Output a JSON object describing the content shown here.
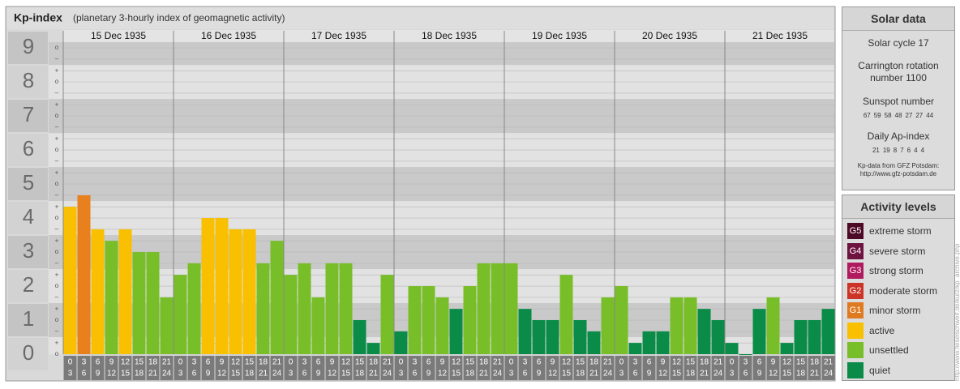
{
  "chart_data": {
    "type": "bar",
    "title": "Kp-index",
    "subtitle": "(planetary 3-hourly index of geomagnetic activity)",
    "ylim": [
      0,
      9.17
    ],
    "yticks": [
      0,
      1,
      2,
      3,
      4,
      5,
      6,
      7,
      8,
      9
    ],
    "minor_ticks": [
      {
        "value": 0,
        "label": "o"
      },
      {
        "value": 0.33,
        "label": "+"
      },
      {
        "value": 0.67,
        "label": "–"
      },
      {
        "value": 1,
        "label": "o"
      },
      {
        "value": 1.33,
        "label": "+"
      },
      {
        "value": 1.67,
        "label": "–"
      },
      {
        "value": 2,
        "label": "o"
      },
      {
        "value": 2.33,
        "label": "+"
      },
      {
        "value": 2.67,
        "label": "–"
      },
      {
        "value": 3,
        "label": "o"
      },
      {
        "value": 3.33,
        "label": "+"
      },
      {
        "value": 3.67,
        "label": "–"
      },
      {
        "value": 4,
        "label": "o"
      },
      {
        "value": 4.33,
        "label": "+"
      },
      {
        "value": 4.67,
        "label": "–"
      },
      {
        "value": 5,
        "label": "o"
      },
      {
        "value": 5.33,
        "label": "+"
      },
      {
        "value": 5.67,
        "label": "–"
      },
      {
        "value": 6,
        "label": "o"
      },
      {
        "value": 6.33,
        "label": "+"
      },
      {
        "value": 6.67,
        "label": "–"
      },
      {
        "value": 7,
        "label": "o"
      },
      {
        "value": 7.33,
        "label": "+"
      },
      {
        "value": 7.67,
        "label": "–"
      },
      {
        "value": 8,
        "label": "o"
      },
      {
        "value": 8.33,
        "label": "+"
      },
      {
        "value": 8.67,
        "label": "–"
      },
      {
        "value": 9,
        "label": "o"
      }
    ],
    "grid": true,
    "hours": [
      {
        "from": "0",
        "to": "3"
      },
      {
        "from": "3",
        "to": "6"
      },
      {
        "from": "6",
        "to": "9"
      },
      {
        "from": "9",
        "to": "12"
      },
      {
        "from": "12",
        "to": "15"
      },
      {
        "from": "15",
        "to": "18"
      },
      {
        "from": "18",
        "to": "21"
      },
      {
        "from": "21",
        "to": "24"
      }
    ],
    "days": [
      {
        "date": "15 Dec 1935",
        "values": [
          4.33,
          4.67,
          3.67,
          3.33,
          3.67,
          3,
          3,
          1.67
        ],
        "colors": [
          "#f8c000",
          "#e8801e",
          "#f8c000",
          "#78be28",
          "#f8c000",
          "#78be28",
          "#78be28",
          "#78be28"
        ]
      },
      {
        "date": "16 Dec 1935",
        "values": [
          2.33,
          2.67,
          4,
          4,
          3.67,
          3.67,
          2.67,
          3.33
        ],
        "colors": [
          "#78be28",
          "#78be28",
          "#f8c000",
          "#f8c000",
          "#f8c000",
          "#f8c000",
          "#78be28",
          "#78be28"
        ]
      },
      {
        "date": "17 Dec 1935",
        "values": [
          2.33,
          2.67,
          1.67,
          2.67,
          2.67,
          1,
          0.33,
          2.33
        ],
        "colors": [
          "#78be28",
          "#78be28",
          "#78be28",
          "#78be28",
          "#78be28",
          "#0a8c48",
          "#0a8c48",
          "#78be28"
        ]
      },
      {
        "date": "18 Dec 1935",
        "values": [
          0.67,
          2,
          2,
          1.67,
          1.33,
          2,
          2.67,
          2.67
        ],
        "colors": [
          "#0a8c48",
          "#78be28",
          "#78be28",
          "#78be28",
          "#0a8c48",
          "#78be28",
          "#78be28",
          "#78be28"
        ]
      },
      {
        "date": "19 Dec 1935",
        "values": [
          2.67,
          1.33,
          1,
          1,
          2.33,
          1,
          0.67,
          1.67
        ],
        "colors": [
          "#78be28",
          "#0a8c48",
          "#0a8c48",
          "#0a8c48",
          "#78be28",
          "#0a8c48",
          "#0a8c48",
          "#78be28"
        ]
      },
      {
        "date": "20 Dec 1935",
        "values": [
          2,
          0.33,
          0.67,
          0.67,
          1.67,
          1.67,
          1.33,
          1
        ],
        "colors": [
          "#78be28",
          "#0a8c48",
          "#0a8c48",
          "#0a8c48",
          "#78be28",
          "#78be28",
          "#0a8c48",
          "#0a8c48"
        ]
      },
      {
        "date": "21 Dec 1935",
        "values": [
          0.33,
          0,
          1.33,
          1.67,
          0.33,
          1,
          1,
          1.33
        ],
        "colors": [
          "#0a8c48",
          "#0a8c48",
          "#0a8c48",
          "#78be28",
          "#0a8c48",
          "#0a8c48",
          "#0a8c48",
          "#0a8c48"
        ]
      }
    ]
  },
  "solar_data": {
    "title": "Solar data",
    "solar_cycle": "Solar cycle 17",
    "carrington": "Carrington rotation number 1100",
    "sunspot_title": "Sunspot number",
    "sunspot_numbers": [
      67,
      59,
      58,
      48,
      27,
      27,
      44
    ],
    "ap_title": "Daily Ap-index",
    "ap_index": [
      21,
      19,
      8,
      7,
      6,
      4,
      4
    ],
    "source": "Kp-data from GFZ Potsdam:",
    "source_url": "http://www.gfz-potsdam.de"
  },
  "activity_levels": {
    "title": "Activity levels",
    "items": [
      {
        "badge": "G5",
        "label": "extreme storm",
        "color": "#4d0a26"
      },
      {
        "badge": "G4",
        "label": "severe storm",
        "color": "#6e1240"
      },
      {
        "badge": "G3",
        "label": "strong storm",
        "color": "#b01a5e"
      },
      {
        "badge": "G2",
        "label": "moderate storm",
        "color": "#cc3428"
      },
      {
        "badge": "G1",
        "label": "minor storm",
        "color": "#e07a20"
      },
      {
        "label": "active",
        "color": "#f8c000"
      },
      {
        "label": "unsettled",
        "color": "#78be28"
      },
      {
        "label": "quiet",
        "color": "#0a8c48"
      }
    ]
  },
  "credit": "http://www.fieselschweif.de/kurz/kp_archive.php"
}
